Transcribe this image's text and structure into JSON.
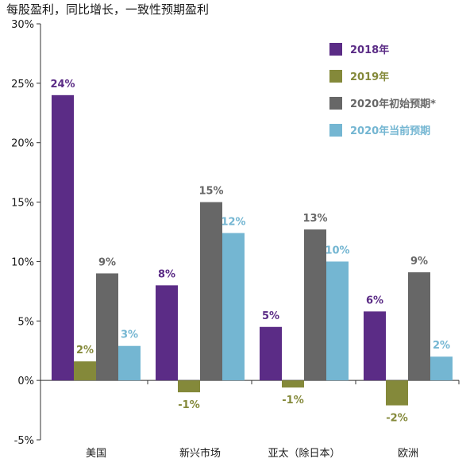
{
  "title": "每股盈利，同比增长，一致性预期盈利",
  "chart_data": {
    "type": "bar",
    "title": "每股盈利，同比增长，一致性预期盈利",
    "categories": [
      "美国",
      "新兴市场",
      "亚太（除日本）",
      "欧洲"
    ],
    "series": [
      {
        "name": "2018年",
        "color": "#5b2c86",
        "values": [
          24,
          8,
          4.5,
          5.8
        ],
        "labels": [
          "24%",
          "8%",
          "5%",
          "6%"
        ]
      },
      {
        "name": "2019年",
        "color": "#84893a",
        "values": [
          1.6,
          -1,
          -0.6,
          -2.1
        ],
        "labels": [
          "2%",
          "-1%",
          "-1%",
          "-2%"
        ]
      },
      {
        "name": "2020年初始预期*",
        "color": "#676767",
        "values": [
          9,
          15,
          12.7,
          9.1
        ],
        "labels": [
          "9%",
          "15%",
          "13%",
          "9%"
        ]
      },
      {
        "name": "2020年当前预期",
        "color": "#74b6d2",
        "values": [
          2.9,
          12.4,
          10,
          2
        ],
        "labels": [
          "3%",
          "12%",
          "10%",
          "2%"
        ]
      }
    ],
    "ylim": [
      -5,
      30
    ],
    "yticks": [
      "-5%",
      "0%",
      "5%",
      "10%",
      "15%",
      "20%",
      "25%",
      "30%"
    ],
    "xlabel": "",
    "ylabel": "",
    "grid": false,
    "legend_position": "top-right"
  }
}
